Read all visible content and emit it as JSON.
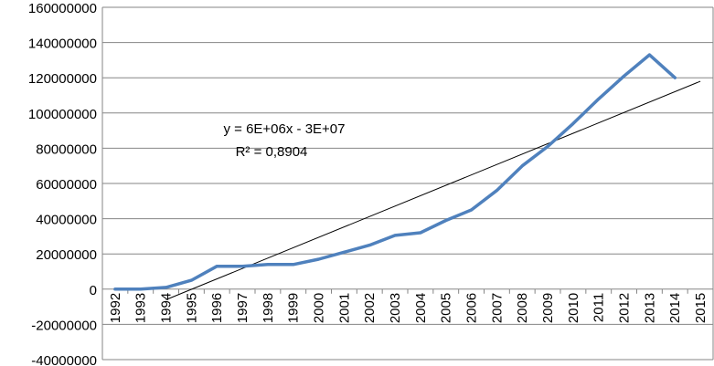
{
  "chart_data": {
    "type": "line",
    "title": "",
    "xlabel": "",
    "ylabel": "",
    "categories": [
      "1992",
      "1993",
      "1994",
      "1995",
      "1996",
      "1997",
      "1998",
      "1999",
      "2000",
      "2001",
      "2002",
      "2003",
      "2004",
      "2005",
      "2006",
      "2007",
      "2008",
      "2009",
      "2010",
      "2011",
      "2012",
      "2013",
      "2014",
      "2015"
    ],
    "series": [
      {
        "values": [
          0,
          0,
          1000000,
          5000000,
          13000000,
          13000000,
          14000000,
          14000000,
          17000000,
          21000000,
          25000000,
          30500000,
          32000000,
          39000000,
          45000000,
          56000000,
          70000000,
          81000000,
          94000000,
          108000000,
          121000000,
          133000000,
          120000000,
          null
        ],
        "color": "#4f81bd"
      }
    ],
    "trendline": {
      "kind": "linear",
      "equation": "y = 6E+06x - 3E+07",
      "r_squared": "R² = 0,8904",
      "start": {
        "category": "1994",
        "value": -6000000
      },
      "end": {
        "category": "2015",
        "value": 118000000
      },
      "color": "#000000"
    },
    "y_ticks": [
      "-40000000",
      "-20000000",
      "0",
      "20000000",
      "40000000",
      "60000000",
      "80000000",
      "100000000",
      "120000000",
      "140000000",
      "160000000"
    ],
    "ylim": [
      -40000000,
      160000000
    ],
    "grid": true
  }
}
